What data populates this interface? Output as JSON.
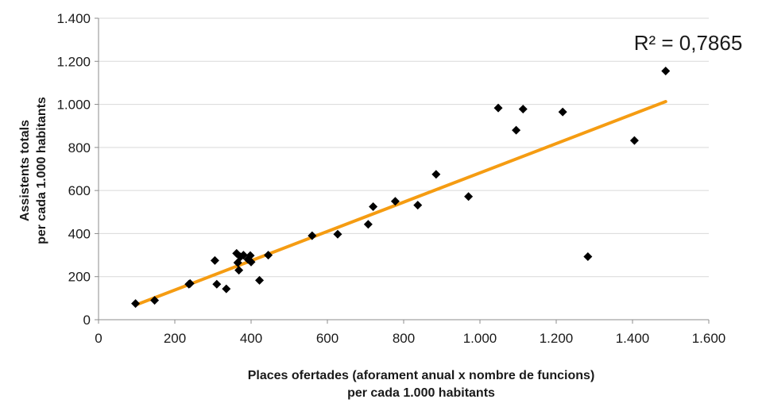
{
  "chart_data": {
    "type": "scatter",
    "x_title_lines": [
      "Places ofertades (aforament anual x nombre de funcions)",
      "per cada 1.000 habitants"
    ],
    "y_title_lines": [
      "Assistents totals",
      "per cada 1.000 habitants"
    ],
    "xlim": [
      0,
      1600
    ],
    "ylim": [
      0,
      1400
    ],
    "x_ticks": [
      0,
      200,
      400,
      600,
      800,
      1000,
      1200,
      1400,
      1600
    ],
    "x_tick_labels": [
      "0",
      "200",
      "400",
      "600",
      "800",
      "1.000",
      "1.200",
      "1.400",
      "1.600"
    ],
    "y_ticks": [
      0,
      200,
      400,
      600,
      800,
      1000,
      1200,
      1400
    ],
    "y_tick_labels": [
      "0",
      "200",
      "400",
      "600",
      "800",
      "1.000",
      "1.200",
      "1.400"
    ],
    "grid": "horizontal",
    "points": [
      {
        "x": 97,
        "y": 75
      },
      {
        "x": 147,
        "y": 90
      },
      {
        "x": 237,
        "y": 165
      },
      {
        "x": 240,
        "y": 168
      },
      {
        "x": 305,
        "y": 275
      },
      {
        "x": 310,
        "y": 165
      },
      {
        "x": 335,
        "y": 143
      },
      {
        "x": 362,
        "y": 308
      },
      {
        "x": 365,
        "y": 265
      },
      {
        "x": 368,
        "y": 230
      },
      {
        "x": 372,
        "y": 292
      },
      {
        "x": 380,
        "y": 300
      },
      {
        "x": 392,
        "y": 280
      },
      {
        "x": 398,
        "y": 298
      },
      {
        "x": 400,
        "y": 268
      },
      {
        "x": 422,
        "y": 183
      },
      {
        "x": 445,
        "y": 300
      },
      {
        "x": 560,
        "y": 390
      },
      {
        "x": 627,
        "y": 397
      },
      {
        "x": 707,
        "y": 443
      },
      {
        "x": 720,
        "y": 525
      },
      {
        "x": 778,
        "y": 550
      },
      {
        "x": 837,
        "y": 532
      },
      {
        "x": 885,
        "y": 675
      },
      {
        "x": 970,
        "y": 572
      },
      {
        "x": 1048,
        "y": 983
      },
      {
        "x": 1095,
        "y": 880
      },
      {
        "x": 1113,
        "y": 978
      },
      {
        "x": 1217,
        "y": 965
      },
      {
        "x": 1283,
        "y": 293
      },
      {
        "x": 1405,
        "y": 832
      },
      {
        "x": 1487,
        "y": 1155
      }
    ],
    "trendline": {
      "type": "linear",
      "x": [
        97,
        1487
      ],
      "y": [
        68,
        1013
      ]
    },
    "r2_label": "R² = 0,7865",
    "colors": {
      "points": "#000000",
      "trendline": "#f59c12",
      "grid": "#d9d9d9",
      "axis": "#8c8c8c"
    }
  }
}
